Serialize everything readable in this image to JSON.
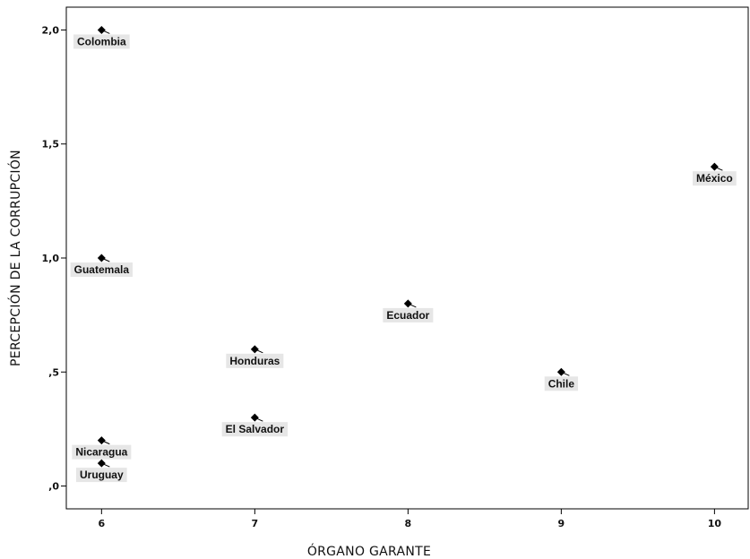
{
  "chart_data": {
    "type": "scatter",
    "title": "",
    "xlabel": "ÓRGANO GARANTE",
    "ylabel": "PERCEPCIÓN DE LA CORRUPCIÓN",
    "xlim": [
      5.77,
      10.22
    ],
    "ylim": [
      -0.1,
      2.1
    ],
    "x_ticks": [
      6,
      7,
      8,
      9,
      10
    ],
    "x_tick_labels": [
      "6",
      "7",
      "8",
      "9",
      "10"
    ],
    "y_ticks": [
      0,
      0.5,
      1,
      1.5,
      2
    ],
    "y_tick_labels": [
      ",0",
      ",5",
      "1,0",
      "1,5",
      "2,0"
    ],
    "grid": false,
    "points": [
      {
        "label": "Colombia",
        "x": 6,
        "y": 2.0
      },
      {
        "label": "Guatemala",
        "x": 6,
        "y": 1.0
      },
      {
        "label": "Nicaragua",
        "x": 6,
        "y": 0.2
      },
      {
        "label": "Uruguay",
        "x": 6,
        "y": 0.1
      },
      {
        "label": "Honduras",
        "x": 7,
        "y": 0.6
      },
      {
        "label": "El Salvador",
        "x": 7,
        "y": 0.3
      },
      {
        "label": "Ecuador",
        "x": 8,
        "y": 0.8
      },
      {
        "label": "Chile",
        "x": 9,
        "y": 0.5
      },
      {
        "label": "México",
        "x": 10,
        "y": 1.4
      }
    ]
  }
}
